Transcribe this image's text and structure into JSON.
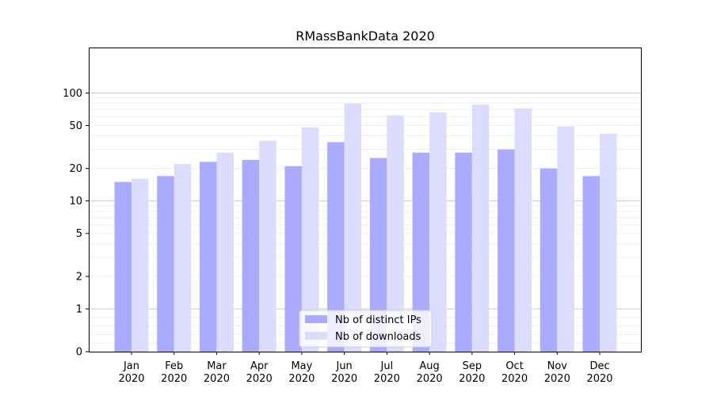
{
  "chart_data": {
    "type": "bar",
    "title": "RMassBankData 2020",
    "xlabel": "",
    "ylabel": "",
    "y_scale": "symlog",
    "ylim": [
      0,
      120
    ],
    "yticks": [
      0,
      1,
      2,
      5,
      10,
      20,
      50,
      100
    ],
    "grid": true,
    "legend_position": "lower-center",
    "categories": [
      [
        "Jan",
        "2020"
      ],
      [
        "Feb",
        "2020"
      ],
      [
        "Mar",
        "2020"
      ],
      [
        "Apr",
        "2020"
      ],
      [
        "May",
        "2020"
      ],
      [
        "Jun",
        "2020"
      ],
      [
        "Jul",
        "2020"
      ],
      [
        "Aug",
        "2020"
      ],
      [
        "Sep",
        "2020"
      ],
      [
        "Oct",
        "2020"
      ],
      [
        "Nov",
        "2020"
      ],
      [
        "Dec",
        "2020"
      ]
    ],
    "series": [
      {
        "name": "Nb of distinct IPs",
        "color": "#aaaaff",
        "values": [
          15,
          17,
          23,
          24,
          21,
          35,
          25,
          28,
          28,
          30,
          20,
          17
        ]
      },
      {
        "name": "Nb of downloads",
        "color": "#dcdcff",
        "values": [
          16,
          22,
          28,
          36,
          48,
          80,
          62,
          66,
          78,
          72,
          49,
          42
        ]
      }
    ]
  }
}
